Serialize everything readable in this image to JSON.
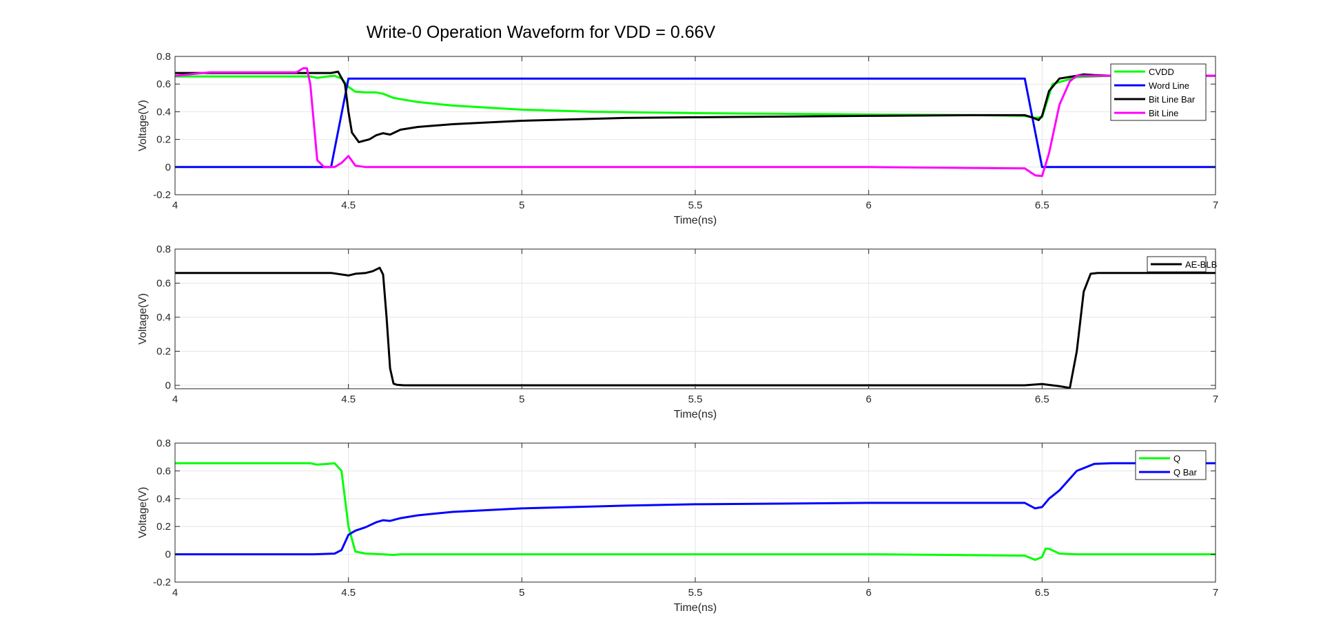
{
  "figure": {
    "title": "Write-0 Operation Waveform for VDD = 0.66V"
  },
  "colors": {
    "green": "#00ff00",
    "blue": "#0000ff",
    "black": "#000000",
    "magenta": "#ff00ff",
    "grid": "#e6e6e6",
    "axes": "#262626"
  },
  "chart_data": [
    {
      "type": "line",
      "xlabel": "Time(ns)",
      "ylabel": "Voltage(V)",
      "xlim": [
        4,
        7
      ],
      "ylim": [
        -0.2,
        0.8
      ],
      "xticks": [
        4,
        4.5,
        5,
        5.5,
        6,
        6.5,
        7
      ],
      "xtick_labels": [
        "4",
        "4.5",
        "5",
        "5.5",
        "6",
        "6.5",
        "7"
      ],
      "yticks": [
        -0.2,
        0,
        0.2,
        0.4,
        0.6,
        0.8
      ],
      "ytick_labels": [
        "-0.2",
        "0",
        "0.2",
        "0.4",
        "0.6",
        "0.8"
      ],
      "grid": true,
      "legend_position": "top-right",
      "series": [
        {
          "name": "CVDD",
          "color": "#00ff00",
          "x": [
            4.0,
            4.39,
            4.41,
            4.44,
            4.46,
            4.48,
            4.5,
            4.52,
            4.55,
            4.58,
            4.6,
            4.63,
            4.7,
            4.8,
            5.0,
            5.2,
            5.5,
            6.0,
            6.3,
            6.45,
            6.48,
            6.5,
            6.53,
            6.6,
            6.7,
            7.0
          ],
          "y": [
            0.655,
            0.655,
            0.645,
            0.655,
            0.66,
            0.64,
            0.58,
            0.545,
            0.54,
            0.54,
            0.53,
            0.5,
            0.47,
            0.445,
            0.415,
            0.4,
            0.39,
            0.38,
            0.375,
            0.37,
            0.355,
            0.36,
            0.6,
            0.65,
            0.66,
            0.66
          ]
        },
        {
          "name": "Word Line",
          "color": "#0000ff",
          "x": [
            4.0,
            4.45,
            4.5,
            6.45,
            6.5,
            7.0
          ],
          "y": [
            0.0,
            0.0,
            0.64,
            0.64,
            0.0,
            0.0
          ]
        },
        {
          "name": "Bit Line Bar",
          "color": "#000000",
          "x": [
            4.0,
            4.45,
            4.47,
            4.49,
            4.5,
            4.51,
            4.53,
            4.56,
            4.58,
            4.6,
            4.62,
            4.65,
            4.7,
            4.8,
            5.0,
            5.3,
            5.5,
            6.0,
            6.3,
            6.45,
            6.47,
            6.49,
            6.5,
            6.52,
            6.55,
            6.6,
            6.62,
            6.65,
            6.7,
            7.0
          ],
          "y": [
            0.68,
            0.68,
            0.69,
            0.6,
            0.4,
            0.25,
            0.18,
            0.2,
            0.23,
            0.245,
            0.235,
            0.27,
            0.29,
            0.31,
            0.335,
            0.355,
            0.36,
            0.37,
            0.375,
            0.375,
            0.36,
            0.34,
            0.37,
            0.55,
            0.64,
            0.66,
            0.67,
            0.665,
            0.66,
            0.66
          ]
        },
        {
          "name": "Bit Line",
          "color": "#ff00ff",
          "x": [
            4.0,
            4.1,
            4.35,
            4.37,
            4.38,
            4.39,
            4.41,
            4.43,
            4.46,
            4.48,
            4.5,
            4.52,
            4.55,
            4.6,
            5.0,
            6.0,
            6.45,
            6.48,
            6.5,
            6.52,
            6.55,
            6.58,
            6.6,
            7.0
          ],
          "y": [
            0.66,
            0.685,
            0.685,
            0.715,
            0.715,
            0.6,
            0.05,
            0.0,
            0.0,
            0.03,
            0.08,
            0.01,
            0.0,
            0.0,
            0.0,
            0.0,
            -0.01,
            -0.06,
            -0.065,
            0.1,
            0.45,
            0.62,
            0.66,
            0.66
          ]
        }
      ]
    },
    {
      "type": "line",
      "xlabel": "Time(ns)",
      "ylabel": "Voltage(V)",
      "xlim": [
        4,
        7
      ],
      "ylim": [
        -0.02,
        0.8
      ],
      "xticks": [
        4,
        4.5,
        5,
        5.5,
        6,
        6.5,
        7
      ],
      "xtick_labels": [
        "4",
        "4.5",
        "5",
        "5.5",
        "6",
        "6.5",
        "7"
      ],
      "yticks": [
        0,
        0.2,
        0.4,
        0.6,
        0.8
      ],
      "ytick_labels": [
        "0",
        "0.2",
        "0.4",
        "0.6",
        "0.8"
      ],
      "grid": true,
      "legend_position": "top-right",
      "series": [
        {
          "name": "AE-BLB",
          "color": "#000000",
          "x": [
            4.0,
            4.45,
            4.5,
            4.52,
            4.55,
            4.57,
            4.59,
            4.6,
            4.61,
            4.62,
            4.63,
            4.64,
            4.66,
            5.0,
            6.0,
            6.45,
            6.5,
            6.55,
            6.58,
            6.6,
            6.62,
            6.64,
            6.66,
            7.0
          ],
          "y": [
            0.66,
            0.66,
            0.645,
            0.655,
            0.66,
            0.67,
            0.69,
            0.65,
            0.4,
            0.1,
            0.01,
            0.003,
            0.0,
            0.0,
            0.0,
            0.0,
            0.008,
            -0.005,
            -0.015,
            0.2,
            0.55,
            0.655,
            0.66,
            0.66
          ]
        }
      ]
    },
    {
      "type": "line",
      "xlabel": "Time(ns)",
      "ylabel": "Voltage(V)",
      "xlim": [
        4,
        7
      ],
      "ylim": [
        -0.2,
        0.8
      ],
      "xticks": [
        4,
        4.5,
        5,
        5.5,
        6,
        6.5,
        7
      ],
      "xtick_labels": [
        "4",
        "4.5",
        "5",
        "5.5",
        "6",
        "6.5",
        "7"
      ],
      "yticks": [
        -0.2,
        0,
        0.2,
        0.4,
        0.6,
        0.8
      ],
      "ytick_labels": [
        "-0.2",
        "0",
        "0.2",
        "0.4",
        "0.6",
        "0.8"
      ],
      "grid": true,
      "legend_position": "top-right",
      "series": [
        {
          "name": "Q",
          "color": "#00ff00",
          "x": [
            4.0,
            4.39,
            4.41,
            4.44,
            4.46,
            4.48,
            4.5,
            4.52,
            4.55,
            4.6,
            4.63,
            4.65,
            5.0,
            6.0,
            6.45,
            6.48,
            6.5,
            6.51,
            6.52,
            6.55,
            6.6,
            7.0
          ],
          "y": [
            0.655,
            0.655,
            0.645,
            0.65,
            0.655,
            0.6,
            0.2,
            0.02,
            0.005,
            0.0,
            -0.005,
            0.0,
            0.0,
            0.0,
            -0.01,
            -0.04,
            -0.02,
            0.04,
            0.04,
            0.005,
            0.0,
            0.0
          ]
        },
        {
          "name": "Q Bar",
          "color": "#0000ff",
          "x": [
            4.0,
            4.4,
            4.46,
            4.48,
            4.5,
            4.52,
            4.55,
            4.58,
            4.6,
            4.62,
            4.65,
            4.7,
            4.8,
            5.0,
            5.3,
            5.5,
            6.0,
            6.3,
            6.45,
            6.48,
            6.5,
            6.52,
            6.55,
            6.6,
            6.65,
            6.7,
            7.0
          ],
          "y": [
            0.0,
            0.0,
            0.005,
            0.03,
            0.14,
            0.17,
            0.195,
            0.23,
            0.245,
            0.24,
            0.26,
            0.28,
            0.305,
            0.33,
            0.35,
            0.36,
            0.37,
            0.37,
            0.37,
            0.33,
            0.34,
            0.4,
            0.46,
            0.6,
            0.65,
            0.655,
            0.655
          ]
        }
      ]
    }
  ]
}
